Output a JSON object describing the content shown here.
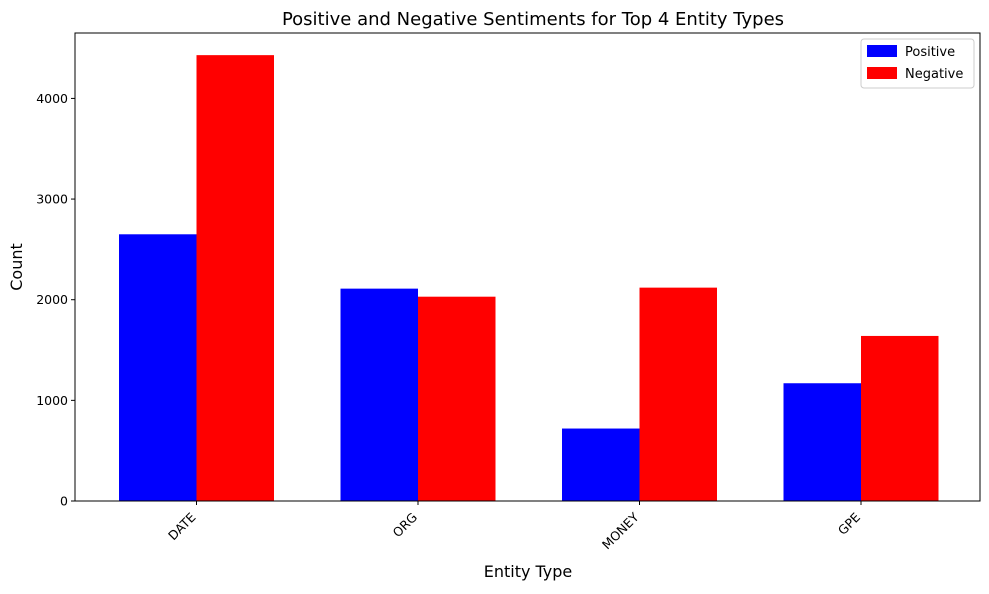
{
  "chart_data": {
    "type": "bar",
    "title": "Positive and Negative Sentiments for Top 4 Entity Types",
    "xlabel": "Entity Type",
    "ylabel": "Count",
    "categories": [
      "DATE",
      "ORG",
      "MONEY",
      "GPE"
    ],
    "series": [
      {
        "name": "Positive",
        "values": [
          2650,
          2110,
          720,
          1170
        ],
        "color": "#0000ff"
      },
      {
        "name": "Negative",
        "values": [
          4430,
          2030,
          2120,
          1640
        ],
        "color": "#ff0000"
      }
    ],
    "ylim": [
      0,
      4650
    ],
    "yticks": [
      0,
      1000,
      2000,
      3000,
      4000
    ],
    "grid": false,
    "legend_position": "top-right"
  }
}
